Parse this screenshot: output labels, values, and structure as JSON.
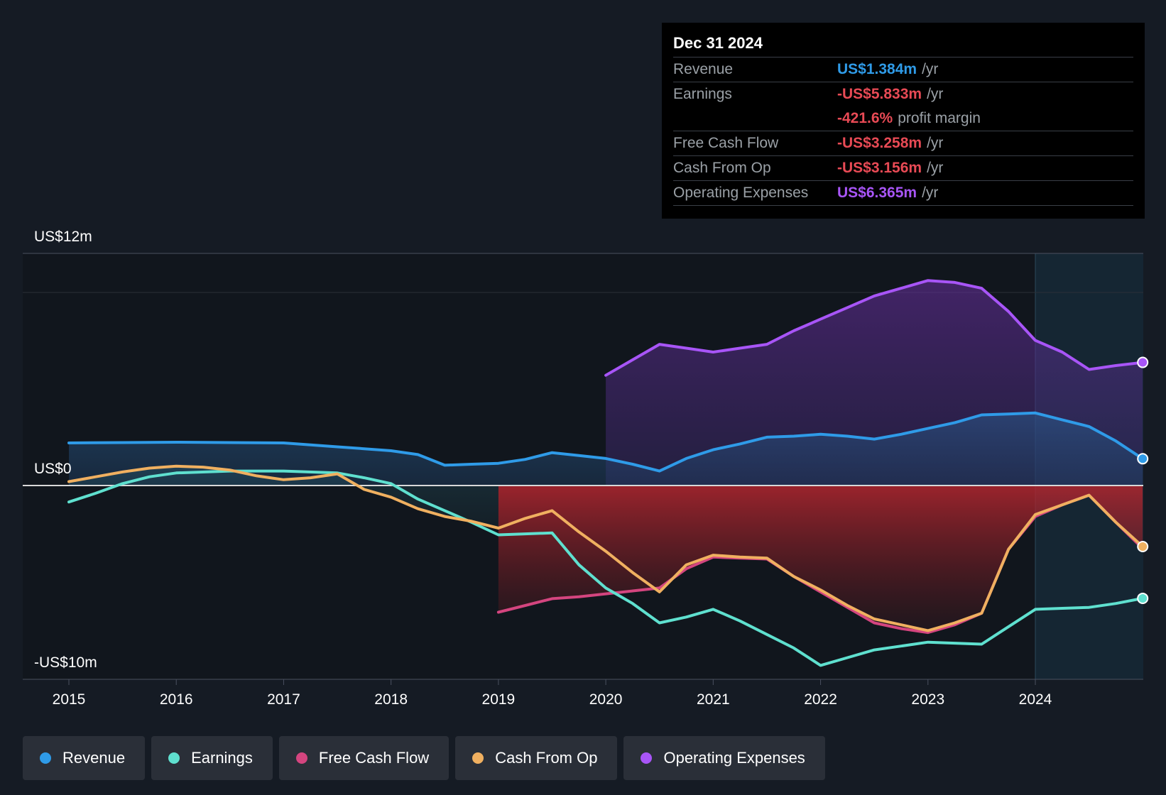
{
  "tooltip": {
    "date": "Dec 31 2024",
    "rows": [
      {
        "label": "Revenue",
        "value": "US$1.384m",
        "unit": "/yr",
        "color": "#2f9be8"
      },
      {
        "label": "Earnings",
        "value": "-US$5.833m",
        "unit": "/yr",
        "color": "#e84a55"
      },
      {
        "label": "",
        "value": "-421.6%",
        "unit": "profit margin",
        "color": "#e84a55"
      },
      {
        "label": "Free Cash Flow",
        "value": "-US$3.258m",
        "unit": "/yr",
        "color": "#e84a55"
      },
      {
        "label": "Cash From Op",
        "value": "-US$3.156m",
        "unit": "/yr",
        "color": "#e84a55"
      },
      {
        "label": "Operating Expenses",
        "value": "US$6.365m",
        "unit": "/yr",
        "color": "#a855f7"
      }
    ]
  },
  "legend": [
    {
      "label": "Revenue",
      "color": "#2f9be8"
    },
    {
      "label": "Earnings",
      "color": "#5fe0cf"
    },
    {
      "label": "Free Cash Flow",
      "color": "#d4457f"
    },
    {
      "label": "Cash From Op",
      "color": "#f0b060"
    },
    {
      "label": "Operating Expenses",
      "color": "#a855f7"
    }
  ],
  "chart_data": {
    "type": "line",
    "title": "",
    "xlabel": "",
    "ylabel": "",
    "y_axis_labels": [
      "US$12m",
      "US$0",
      "-US$10m"
    ],
    "ylim": [
      -10,
      12
    ],
    "xlim": [
      2014.6,
      2025.0
    ],
    "x_ticks": [
      2015,
      2016,
      2017,
      2018,
      2019,
      2020,
      2021,
      2022,
      2023,
      2024
    ],
    "x_tick_labels": [
      "2015",
      "2016",
      "2017",
      "2018",
      "2019",
      "2020",
      "2021",
      "2022",
      "2023",
      "2024"
    ],
    "forecast_start": 2024.0,
    "series": [
      {
        "name": "Operating Expenses",
        "color": "#a855f7",
        "points": [
          [
            2020.0,
            5.7
          ],
          [
            2020.25,
            6.5
          ],
          [
            2020.5,
            7.3
          ],
          [
            2020.75,
            7.1
          ],
          [
            2021.0,
            6.9
          ],
          [
            2021.25,
            7.1
          ],
          [
            2021.5,
            7.3
          ],
          [
            2021.75,
            8.0
          ],
          [
            2022.0,
            8.6
          ],
          [
            2022.25,
            9.2
          ],
          [
            2022.5,
            9.8
          ],
          [
            2022.75,
            10.2
          ],
          [
            2023.0,
            10.6
          ],
          [
            2023.25,
            10.5
          ],
          [
            2023.5,
            10.2
          ],
          [
            2023.75,
            9.0
          ],
          [
            2024.0,
            7.5
          ],
          [
            2024.25,
            6.9
          ],
          [
            2024.5,
            6.0
          ],
          [
            2024.75,
            6.2
          ],
          [
            2025.0,
            6.365
          ]
        ]
      },
      {
        "name": "Revenue",
        "color": "#2f9be8",
        "points": [
          [
            2015.0,
            2.2
          ],
          [
            2015.5,
            2.22
          ],
          [
            2016.0,
            2.24
          ],
          [
            2016.5,
            2.22
          ],
          [
            2017.0,
            2.2
          ],
          [
            2017.25,
            2.1
          ],
          [
            2017.5,
            2.0
          ],
          [
            2017.75,
            1.9
          ],
          [
            2018.0,
            1.8
          ],
          [
            2018.25,
            1.6
          ],
          [
            2018.5,
            1.05
          ],
          [
            2018.75,
            1.1
          ],
          [
            2019.0,
            1.15
          ],
          [
            2019.25,
            1.35
          ],
          [
            2019.5,
            1.7
          ],
          [
            2019.75,
            1.55
          ],
          [
            2020.0,
            1.4
          ],
          [
            2020.25,
            1.1
          ],
          [
            2020.5,
            0.75
          ],
          [
            2020.75,
            1.4
          ],
          [
            2021.0,
            1.85
          ],
          [
            2021.25,
            2.15
          ],
          [
            2021.5,
            2.5
          ],
          [
            2021.75,
            2.55
          ],
          [
            2022.0,
            2.65
          ],
          [
            2022.25,
            2.55
          ],
          [
            2022.5,
            2.4
          ],
          [
            2022.75,
            2.65
          ],
          [
            2023.0,
            2.95
          ],
          [
            2023.25,
            3.25
          ],
          [
            2023.5,
            3.65
          ],
          [
            2023.75,
            3.7
          ],
          [
            2024.0,
            3.75
          ],
          [
            2024.25,
            3.4
          ],
          [
            2024.5,
            3.05
          ],
          [
            2024.75,
            2.3
          ],
          [
            2025.0,
            1.384
          ]
        ]
      },
      {
        "name": "Free Cash Flow",
        "color": "#d4457f",
        "points": [
          [
            2019.0,
            -6.55
          ],
          [
            2019.25,
            -6.2
          ],
          [
            2019.5,
            -5.85
          ],
          [
            2019.75,
            -5.75
          ],
          [
            2020.0,
            -5.6
          ],
          [
            2020.25,
            -5.45
          ],
          [
            2020.5,
            -5.3
          ],
          [
            2020.75,
            -4.3
          ],
          [
            2021.0,
            -3.7
          ],
          [
            2021.25,
            -3.75
          ],
          [
            2021.5,
            -3.8
          ],
          [
            2021.75,
            -4.7
          ],
          [
            2022.0,
            -5.5
          ],
          [
            2022.25,
            -6.3
          ],
          [
            2022.5,
            -7.1
          ],
          [
            2022.75,
            -7.4
          ],
          [
            2023.0,
            -7.6
          ],
          [
            2023.25,
            -7.2
          ],
          [
            2023.5,
            -6.6
          ],
          [
            2023.75,
            -3.3
          ],
          [
            2024.0,
            -1.6
          ],
          [
            2024.25,
            -1.0
          ],
          [
            2024.5,
            -0.5
          ],
          [
            2024.75,
            -1.9
          ],
          [
            2025.0,
            -3.258
          ]
        ]
      },
      {
        "name": "Cash From Op",
        "color": "#f0b060",
        "points": [
          [
            2015.0,
            0.2
          ],
          [
            2015.25,
            0.45
          ],
          [
            2015.5,
            0.7
          ],
          [
            2015.75,
            0.9
          ],
          [
            2016.0,
            1.0
          ],
          [
            2016.25,
            0.95
          ],
          [
            2016.5,
            0.8
          ],
          [
            2016.75,
            0.5
          ],
          [
            2017.0,
            0.3
          ],
          [
            2017.25,
            0.4
          ],
          [
            2017.5,
            0.6
          ],
          [
            2017.75,
            -0.2
          ],
          [
            2018.0,
            -0.6
          ],
          [
            2018.25,
            -1.2
          ],
          [
            2018.5,
            -1.6
          ],
          [
            2018.75,
            -1.85
          ],
          [
            2019.0,
            -2.2
          ],
          [
            2019.25,
            -1.7
          ],
          [
            2019.5,
            -1.3
          ],
          [
            2019.75,
            -2.4
          ],
          [
            2020.0,
            -3.4
          ],
          [
            2020.25,
            -4.5
          ],
          [
            2020.5,
            -5.5
          ],
          [
            2020.75,
            -4.1
          ],
          [
            2021.0,
            -3.6
          ],
          [
            2021.25,
            -3.7
          ],
          [
            2021.5,
            -3.75
          ],
          [
            2021.75,
            -4.7
          ],
          [
            2022.0,
            -5.4
          ],
          [
            2022.25,
            -6.2
          ],
          [
            2022.5,
            -6.9
          ],
          [
            2022.75,
            -7.2
          ],
          [
            2023.0,
            -7.5
          ],
          [
            2023.25,
            -7.1
          ],
          [
            2023.5,
            -6.6
          ],
          [
            2023.75,
            -3.3
          ],
          [
            2024.0,
            -1.5
          ],
          [
            2024.25,
            -1.0
          ],
          [
            2024.5,
            -0.5
          ],
          [
            2024.75,
            -1.9
          ],
          [
            2025.0,
            -3.156
          ]
        ]
      },
      {
        "name": "Earnings",
        "color": "#5fe0cf",
        "points": [
          [
            2015.0,
            -0.85
          ],
          [
            2015.25,
            -0.4
          ],
          [
            2015.5,
            0.1
          ],
          [
            2015.75,
            0.45
          ],
          [
            2016.0,
            0.65
          ],
          [
            2016.5,
            0.75
          ],
          [
            2017.0,
            0.75
          ],
          [
            2017.5,
            0.65
          ],
          [
            2017.75,
            0.4
          ],
          [
            2018.0,
            0.1
          ],
          [
            2018.25,
            -0.7
          ],
          [
            2018.5,
            -1.3
          ],
          [
            2018.75,
            -1.9
          ],
          [
            2019.0,
            -2.55
          ],
          [
            2019.25,
            -2.5
          ],
          [
            2019.5,
            -2.45
          ],
          [
            2019.75,
            -4.1
          ],
          [
            2020.0,
            -5.3
          ],
          [
            2020.25,
            -6.1
          ],
          [
            2020.5,
            -7.1
          ],
          [
            2020.75,
            -6.8
          ],
          [
            2021.0,
            -6.4
          ],
          [
            2021.25,
            -7.0
          ],
          [
            2021.5,
            -7.7
          ],
          [
            2021.75,
            -8.4
          ],
          [
            2022.0,
            -9.3
          ],
          [
            2022.25,
            -8.9
          ],
          [
            2022.5,
            -8.5
          ],
          [
            2022.75,
            -8.3
          ],
          [
            2023.0,
            -8.1
          ],
          [
            2023.25,
            -8.15
          ],
          [
            2023.5,
            -8.2
          ],
          [
            2023.75,
            -7.3
          ],
          [
            2024.0,
            -6.4
          ],
          [
            2024.25,
            -6.35
          ],
          [
            2024.5,
            -6.3
          ],
          [
            2024.75,
            -6.1
          ],
          [
            2025.0,
            -5.833
          ]
        ]
      }
    ]
  }
}
